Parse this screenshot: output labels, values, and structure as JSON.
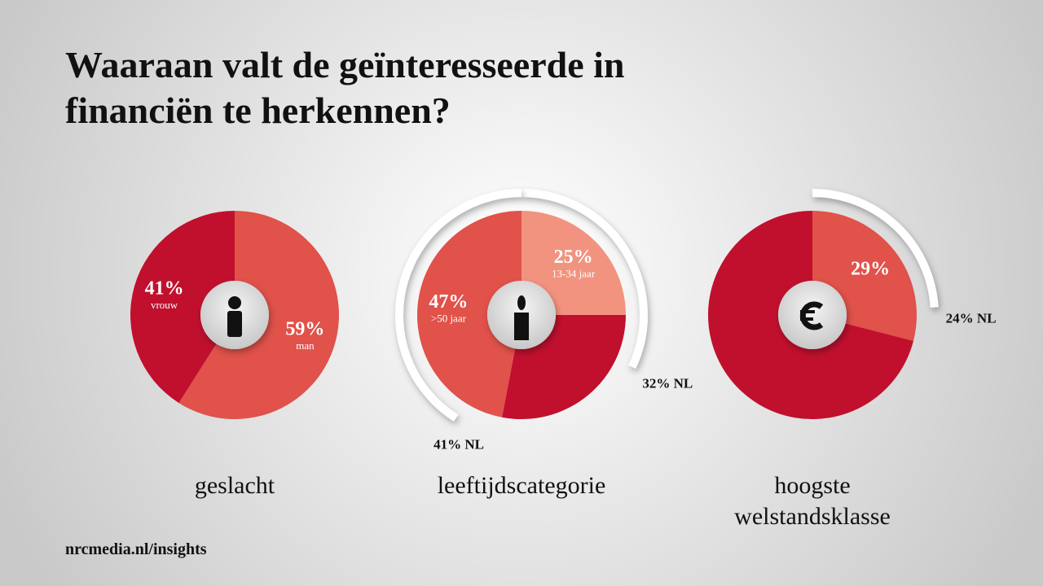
{
  "title": "Waaraan valt de geïnteresseerde in financiën te herkennen?",
  "footer": "nrcmedia.nl/insights",
  "chart_data": [
    {
      "type": "donut",
      "title": "geslacht",
      "categories": [
        "man",
        "vrouw"
      ],
      "values": [
        59,
        41
      ],
      "value_labels": [
        "59%",
        "41%"
      ],
      "colors": [
        "#e0524a",
        "#c0102e"
      ],
      "nl_values": [
        null,
        null
      ],
      "nl_labels": [
        null,
        null
      ]
    },
    {
      "type": "donut",
      "title": "leeftijdscategorie",
      "categories": [
        "13-34 jaar",
        null,
        ">50 jaar"
      ],
      "values": [
        25,
        28,
        47
      ],
      "value_labels": [
        "25%",
        null,
        "47%"
      ],
      "colors": [
        "#f2937f",
        "#c0102e",
        "#e0524a"
      ],
      "nl_values": [
        32,
        null,
        41
      ],
      "nl_labels": [
        "32% NL",
        null,
        "41% NL"
      ]
    },
    {
      "type": "donut",
      "title": "hoogste welstandsklasse",
      "categories": [
        null,
        null
      ],
      "values": [
        29,
        71
      ],
      "value_labels": [
        "29%",
        null
      ],
      "colors": [
        "#e0524a",
        "#c0102e"
      ],
      "nl_values": [
        24,
        null
      ],
      "nl_labels": [
        "24% NL",
        null
      ]
    }
  ]
}
